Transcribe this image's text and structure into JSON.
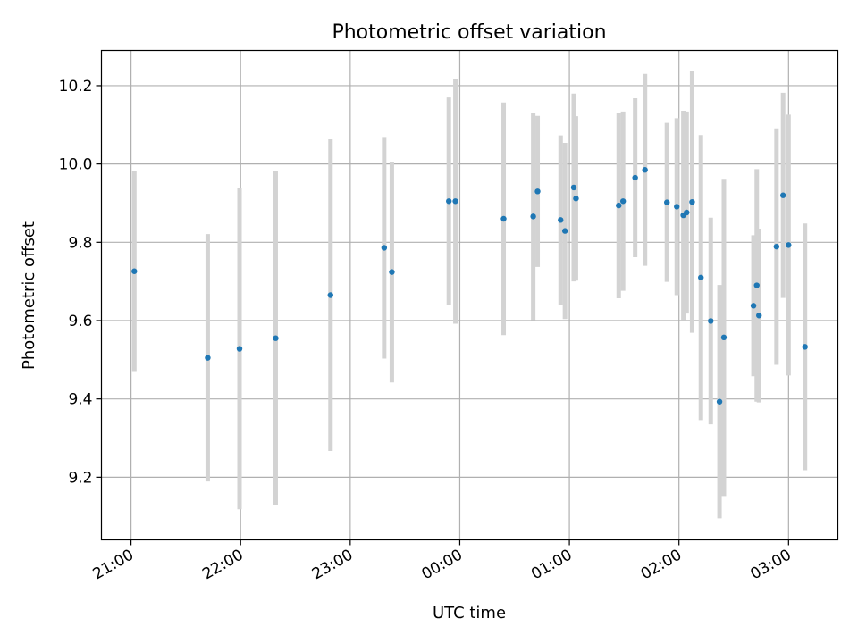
{
  "chart_data": {
    "type": "scatter",
    "title": "Photometric offset variation",
    "xlabel": "UTC time",
    "ylabel": "Photometric offset",
    "grid": true,
    "x_tick_labels": [
      "21:00",
      "22:00",
      "23:00",
      "00:00",
      "01:00",
      "02:00",
      "03:00"
    ],
    "y_tick_labels": [
      "9.2",
      "9.4",
      "9.6",
      "9.8",
      "10.0",
      "10.2"
    ],
    "y_ticks": [
      9.2,
      9.4,
      9.6,
      9.8,
      10.0,
      10.2
    ],
    "ylim": [
      9.04,
      10.29
    ],
    "xlim_hours": [
      20.73,
      27.45
    ],
    "colors": {
      "point": "#1f77b4",
      "errorbar": "#d3d3d3",
      "grid": "#b0b0b0"
    },
    "series": [
      {
        "x_hours": [
          21.03,
          21.7,
          21.99,
          22.32,
          22.82,
          23.31,
          23.38,
          23.9,
          23.96,
          24.4,
          24.67,
          24.71,
          24.92,
          24.96,
          25.04,
          25.06,
          25.45,
          25.49,
          25.6,
          25.69,
          25.89,
          25.98,
          26.04,
          26.07,
          26.12,
          26.2,
          26.29,
          26.37,
          26.41,
          26.68,
          26.71,
          26.73,
          26.89,
          26.95,
          27.0,
          27.15
        ],
        "y": [
          9.726,
          9.505,
          9.528,
          9.555,
          9.665,
          9.786,
          9.724,
          9.905,
          9.905,
          9.86,
          9.866,
          9.93,
          9.857,
          9.829,
          9.94,
          9.912,
          9.894,
          9.905,
          9.965,
          9.985,
          9.902,
          9.891,
          9.869,
          9.876,
          9.903,
          9.71,
          9.599,
          9.393,
          9.557,
          9.638,
          9.69,
          9.613,
          9.789,
          9.92,
          9.793,
          9.533
        ],
        "yerr": [
          0.255,
          0.316,
          0.41,
          0.427,
          0.398,
          0.283,
          0.282,
          0.265,
          0.313,
          0.297,
          0.265,
          0.193,
          0.216,
          0.225,
          0.24,
          0.21,
          0.237,
          0.229,
          0.203,
          0.245,
          0.203,
          0.226,
          0.267,
          0.258,
          0.334,
          0.364,
          0.264,
          0.298,
          0.405,
          0.18,
          0.297,
          0.222,
          0.302,
          0.262,
          0.333,
          0.315
        ]
      }
    ]
  }
}
